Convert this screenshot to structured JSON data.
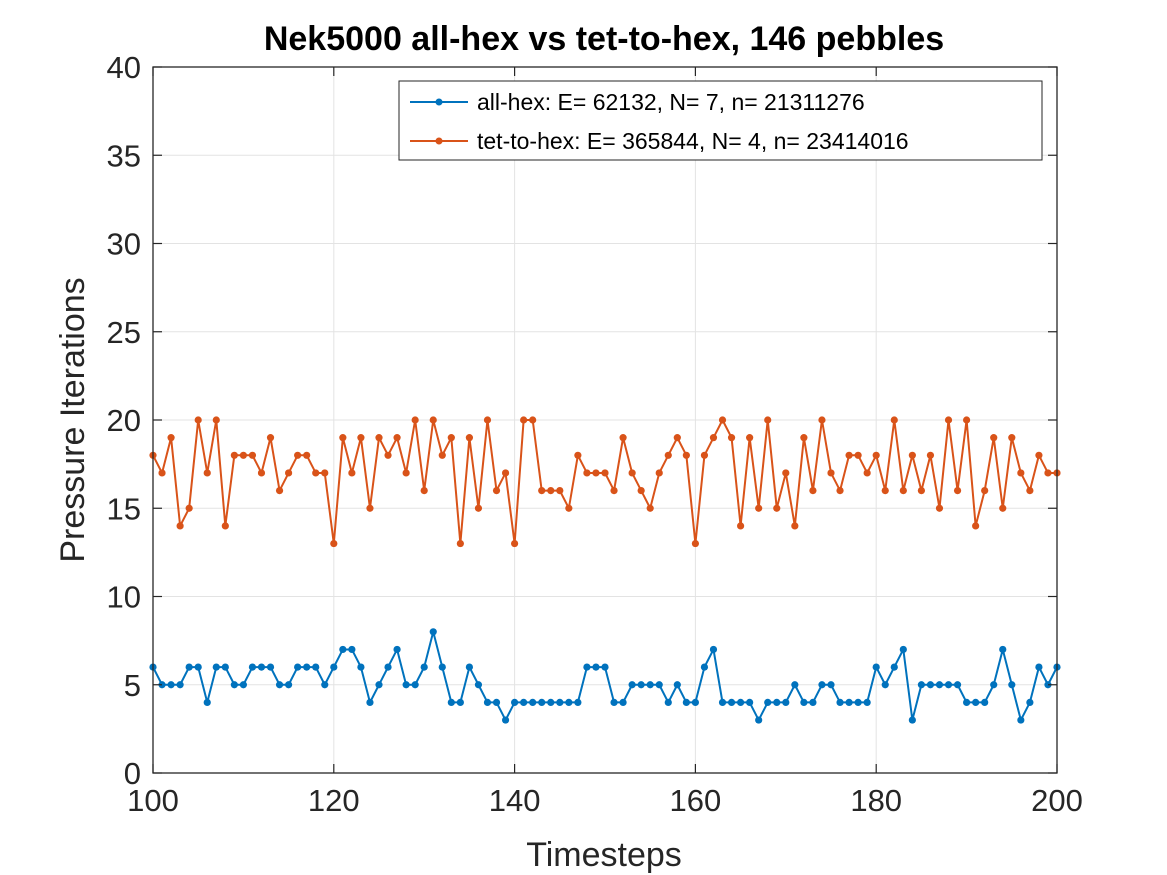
{
  "chart_data": {
    "type": "line",
    "title": "Nek5000 all-hex vs tet-to-hex, 146 pebbles",
    "xlabel": "Timesteps",
    "ylabel": "Pressure Iterations",
    "xlim": [
      100,
      200
    ],
    "ylim": [
      0,
      40
    ],
    "xticks": [
      100,
      120,
      140,
      160,
      180,
      200
    ],
    "yticks": [
      0,
      5,
      10,
      15,
      20,
      25,
      30,
      35,
      40
    ],
    "xtick_labels": [
      "100",
      "120",
      "140",
      "160",
      "180",
      "200"
    ],
    "ytick_labels": [
      "0",
      "5",
      "10",
      "15",
      "20",
      "25",
      "30",
      "35",
      "40"
    ],
    "grid": true,
    "legend_position": "top-right",
    "x_start": 100,
    "x_step": 1,
    "series": [
      {
        "name": "all-hex: E= 62132, N= 7, n= 21311276",
        "color": "#0072BD",
        "values": [
          6,
          5,
          5,
          5,
          6,
          6,
          4,
          6,
          6,
          5,
          5,
          6,
          6,
          6,
          5,
          5,
          6,
          6,
          6,
          5,
          6,
          7,
          7,
          6,
          4,
          5,
          6,
          7,
          5,
          5,
          6,
          8,
          6,
          4,
          4,
          6,
          5,
          4,
          4,
          3,
          4,
          4,
          4,
          4,
          4,
          4,
          4,
          4,
          6,
          6,
          6,
          4,
          4,
          5,
          5,
          5,
          5,
          4,
          5,
          4,
          4,
          6,
          7,
          4,
          4,
          4,
          4,
          3,
          4,
          4,
          4,
          5,
          4,
          4,
          5,
          5,
          4,
          4,
          4,
          4,
          6,
          5,
          6,
          7,
          3,
          5,
          5,
          5,
          5,
          5,
          4,
          4,
          4,
          5,
          7,
          5,
          3,
          4,
          6,
          5,
          6
        ]
      },
      {
        "name": "tet-to-hex: E= 365844, N= 4, n= 23414016",
        "color": "#D95319",
        "values": [
          18,
          17,
          19,
          14,
          15,
          20,
          17,
          20,
          14,
          18,
          18,
          18,
          17,
          19,
          16,
          17,
          18,
          18,
          17,
          17,
          13,
          19,
          17,
          19,
          15,
          19,
          18,
          19,
          17,
          20,
          16,
          20,
          18,
          19,
          13,
          19,
          15,
          20,
          16,
          17,
          13,
          20,
          20,
          16,
          16,
          16,
          15,
          18,
          17,
          17,
          17,
          16,
          19,
          17,
          16,
          15,
          17,
          18,
          19,
          18,
          13,
          18,
          19,
          20,
          19,
          14,
          19,
          15,
          20,
          15,
          17,
          14,
          19,
          16,
          20,
          17,
          16,
          18,
          18,
          17,
          18,
          16,
          20,
          16,
          18,
          16,
          18,
          15,
          20,
          16,
          20,
          14,
          16,
          19,
          15,
          19,
          17,
          16,
          18,
          17,
          17
        ]
      }
    ]
  }
}
